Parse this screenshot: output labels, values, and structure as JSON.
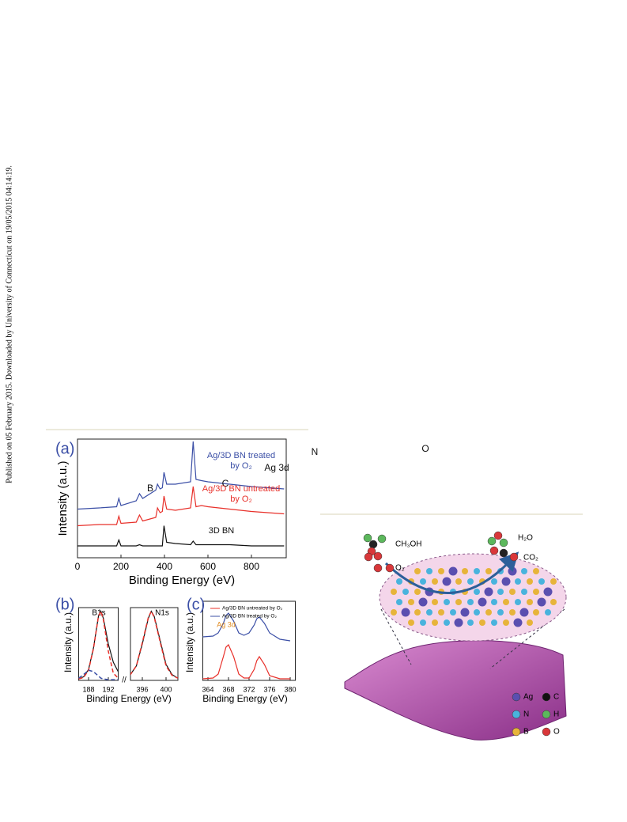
{
  "side_note": "Published on 05 February 2015. Downloaded by University of Connecticut on 19/05/2015 04:14:19.",
  "chart_data": [
    {
      "type": "line",
      "panel": "(a)",
      "xlabel": "Binding Energy (eV)",
      "ylabel": "Intensity (a.u.)",
      "xlim": [
        0,
        960
      ],
      "xticks": [
        0,
        200,
        400,
        600,
        800
      ],
      "ylim": [
        0,
        100
      ],
      "annotations": [
        "B",
        "C",
        "Ag 3d",
        "N",
        "O"
      ],
      "x": [
        0,
        100,
        180,
        190,
        200,
        270,
        285,
        300,
        360,
        368,
        374,
        380,
        390,
        398,
        410,
        450,
        520,
        532,
        545,
        570,
        600,
        700,
        800,
        950
      ],
      "series": [
        {
          "name": "Ag/3D BN treated by O₂",
          "color": "#3b4fa6",
          "values": [
            41,
            42,
            43,
            50,
            44,
            48,
            54,
            50,
            57,
            62,
            60,
            58,
            59,
            72,
            62,
            62,
            64,
            98,
            66,
            65,
            64,
            62,
            60,
            58
          ]
        },
        {
          "name": "Ag/3D BN untreated by O₂",
          "color": "#e8302a",
          "values": [
            27,
            28,
            28,
            35,
            29,
            30,
            36,
            31,
            34,
            42,
            40,
            38,
            39,
            52,
            41,
            40,
            42,
            60,
            43,
            44,
            43,
            41,
            39,
            37
          ]
        },
        {
          "name": "3D BN",
          "color": "#111111",
          "values": [
            10,
            10,
            10,
            15,
            10,
            10,
            11,
            10,
            10,
            10,
            10,
            10,
            10,
            27,
            13,
            12,
            11,
            14,
            11,
            11,
            11,
            11,
            10,
            10
          ]
        }
      ]
    },
    {
      "type": "line",
      "panel": "(b)",
      "xlabel": "Binding Energy (eV)",
      "ylabel": "Intensity (a.u.)",
      "title": "B1s",
      "xlim": [
        186,
        194
      ],
      "xticks": [
        188,
        192
      ],
      "ylim": [
        0,
        100
      ],
      "x": [
        186,
        187,
        188,
        189,
        190,
        190.5,
        191,
        192,
        193,
        194
      ],
      "series": [
        {
          "color": "#111111",
          "dashed": false,
          "values": [
            2,
            5,
            15,
            45,
            88,
            95,
            85,
            50,
            25,
            12
          ]
        },
        {
          "color": "#e8302a",
          "dashed": true,
          "values": [
            2,
            4,
            14,
            44,
            88,
            95,
            83,
            40,
            10,
            3
          ]
        },
        {
          "color": "#3b4fa6",
          "dashed": true,
          "values": [
            3,
            8,
            14,
            12,
            6,
            3,
            2,
            1,
            1,
            1
          ]
        }
      ]
    },
    {
      "type": "line",
      "title": "N1s",
      "xlim": [
        394,
        402
      ],
      "xticks": [
        396,
        400
      ],
      "ylim": [
        0,
        100
      ],
      "x": [
        393,
        394,
        395,
        396,
        397,
        397.5,
        398,
        399,
        400,
        401,
        402
      ],
      "series": [
        {
          "color": "#111111",
          "dashed": false,
          "values": [
            3,
            8,
            20,
            50,
            85,
            95,
            88,
            55,
            22,
            8,
            3
          ]
        },
        {
          "color": "#e8302a",
          "dashed": true,
          "values": [
            3,
            8,
            20,
            52,
            86,
            95,
            87,
            53,
            20,
            7,
            3
          ]
        }
      ]
    },
    {
      "type": "line",
      "panel": "(c)",
      "xlabel": "Binding Energy (eV)",
      "ylabel": "Intensity (a.u.)",
      "xlim": [
        363,
        381
      ],
      "xticks": [
        364,
        368,
        372,
        376,
        380
      ],
      "ylim": [
        0,
        100
      ],
      "annotations": [
        "Ag 3d"
      ],
      "x": [
        363,
        365,
        366,
        367,
        367.5,
        368,
        369,
        370,
        371,
        372,
        373,
        373.5,
        374,
        375,
        376,
        378,
        380
      ],
      "series": [
        {
          "name": "Ag/3D BN untreated by O₂",
          "color": "#e8302a",
          "values": [
            2,
            3,
            8,
            30,
            42,
            45,
            30,
            8,
            3,
            3,
            14,
            25,
            30,
            20,
            6,
            2,
            2
          ]
        },
        {
          "name": "Ag/3D BN treated by O₂",
          "color": "#3b4fa6",
          "values": [
            55,
            56,
            60,
            72,
            82,
            85,
            75,
            60,
            57,
            60,
            70,
            78,
            80,
            72,
            60,
            52,
            50
          ]
        }
      ]
    }
  ],
  "scheme": {
    "reactants": [
      "CH₃OH",
      "O₂"
    ],
    "products": [
      "H₂O",
      "CO₂"
    ],
    "legend": [
      "Ag",
      "C",
      "N",
      "H",
      "B",
      "O"
    ]
  }
}
